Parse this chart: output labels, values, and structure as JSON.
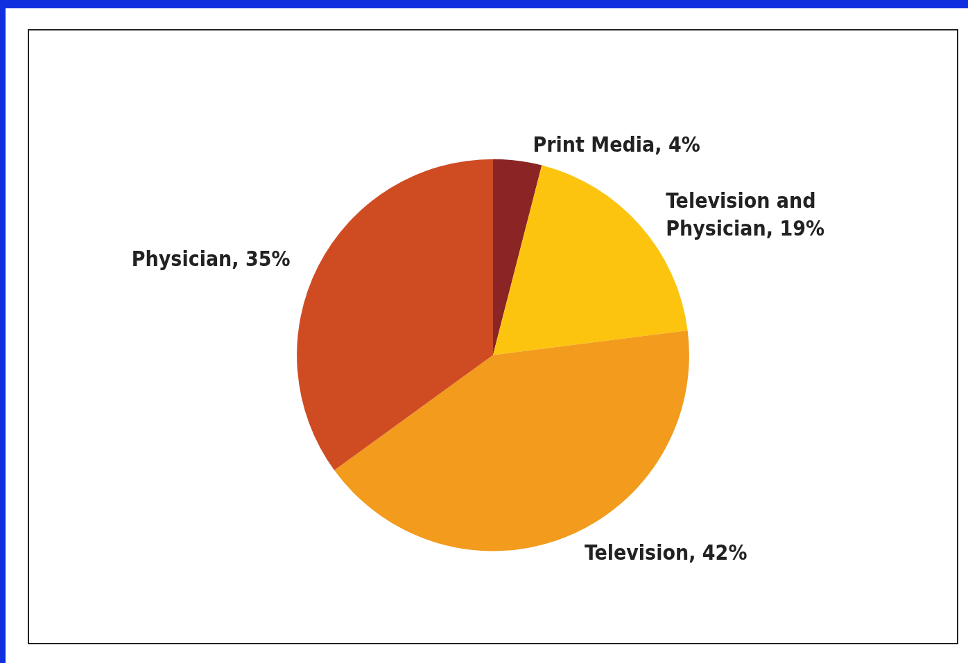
{
  "chart_data": {
    "type": "pie",
    "categories": [
      "Print Media",
      "Television and Physician",
      "Television",
      "Physician"
    ],
    "values": [
      4,
      19,
      42,
      35
    ],
    "colors": [
      "#8b2525",
      "#fdc40f",
      "#f29b1d",
      "#cf4c23"
    ],
    "value_labels": [
      "4%",
      "19%",
      "42%",
      "35%"
    ],
    "legend": false
  }
}
